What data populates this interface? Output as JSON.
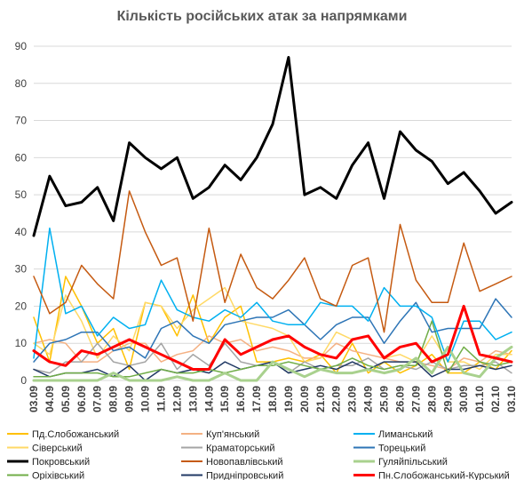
{
  "chart_data": {
    "type": "line",
    "title": "Кількість російських атак за напрямками",
    "xlabel": "",
    "ylabel": "",
    "ylim": [
      0,
      90
    ],
    "yticks": [
      0,
      10,
      20,
      30,
      40,
      50,
      60,
      70,
      80,
      90
    ],
    "grid": "horizontal",
    "legend_position": "bottom",
    "categories": [
      "03.09",
      "04.09",
      "05.09",
      "06.09",
      "07.09",
      "08.09",
      "09.09",
      "10.09",
      "11.09",
      "12.09",
      "13.09",
      "14.09",
      "15.09",
      "16.09",
      "17.09",
      "18.09",
      "19.09",
      "20.09",
      "21.09",
      "22.09",
      "23.09",
      "24.09",
      "25.09",
      "26.09",
      "27.09",
      "28.09",
      "29.09",
      "30.09",
      "01.10",
      "02.10",
      "03.10"
    ],
    "series": [
      {
        "name": "Пд.Слобожанський",
        "color": "#ffc000",
        "width": 1.5,
        "values": [
          17,
          5,
          28,
          20,
          10,
          14,
          3,
          21,
          20,
          12,
          23,
          10,
          17,
          20,
          5,
          5,
          6,
          5,
          7,
          2,
          10,
          2,
          5,
          2,
          4,
          7,
          2,
          2,
          5,
          3,
          8
        ]
      },
      {
        "name": "Куп'янський",
        "color": "#f4b183",
        "width": 1.5,
        "values": [
          10,
          11,
          10,
          5,
          5,
          8,
          10,
          10,
          5,
          7,
          8,
          12,
          10,
          11,
          8,
          9,
          8,
          6,
          6,
          10,
          8,
          7,
          6,
          5,
          5,
          4,
          3,
          6,
          5,
          8,
          7
        ]
      },
      {
        "name": "Лиманський",
        "color": "#00b0f0",
        "width": 1.5,
        "values": [
          6,
          41,
          18,
          20,
          12,
          17,
          14,
          15,
          27,
          19,
          17,
          16,
          19,
          17,
          21,
          16,
          15,
          15,
          21,
          20,
          20,
          16,
          25,
          20,
          20,
          17,
          5,
          16,
          16,
          11,
          13
        ]
      },
      {
        "name": "Сіверський",
        "color": "#ffd966",
        "width": 1.5,
        "values": [
          10,
          7,
          23,
          16,
          6,
          12,
          8,
          21,
          20,
          14,
          19,
          22,
          25,
          16,
          15,
          14,
          12,
          5,
          6,
          13,
          11,
          12,
          6,
          7,
          5,
          12,
          5,
          5,
          3,
          7,
          7
        ]
      },
      {
        "name": "Краматорський",
        "color": "#a5a5a5",
        "width": 1.5,
        "values": [
          3,
          2,
          5,
          5,
          10,
          5,
          4,
          5,
          10,
          3,
          7,
          4,
          10,
          5,
          4,
          5,
          2,
          5,
          3,
          4,
          4,
          6,
          3,
          4,
          3,
          5,
          3,
          4,
          4,
          5,
          2
        ]
      },
      {
        "name": "Торецький",
        "color": "#2e75b6",
        "width": 1.5,
        "values": [
          5,
          10,
          11,
          13,
          13,
          8,
          9,
          6,
          14,
          16,
          12,
          10,
          15,
          16,
          17,
          17,
          19,
          15,
          11,
          15,
          17,
          17,
          10,
          16,
          21,
          13,
          14,
          14,
          14,
          22,
          17
        ]
      },
      {
        "name": "Покровський",
        "color": "#000000",
        "width": 3,
        "values": [
          39,
          55,
          47,
          48,
          52,
          43,
          64,
          60,
          57,
          60,
          49,
          52,
          58,
          54,
          60,
          69,
          87,
          50,
          52,
          49,
          58,
          64,
          49,
          67,
          62,
          59,
          53,
          56,
          51,
          45,
          48
        ]
      },
      {
        "name": "Новопавлівський",
        "color": "#c55a11",
        "width": 1.5,
        "values": [
          28,
          18,
          21,
          31,
          26,
          22,
          51,
          40,
          31,
          33,
          16,
          41,
          21,
          34,
          25,
          22,
          27,
          33,
          22,
          20,
          31,
          33,
          13,
          42,
          27,
          21,
          21,
          37,
          24,
          26,
          28
        ]
      },
      {
        "name": "Гуляйпільський",
        "color": "#a9d18e",
        "width": 3,
        "values": [
          0,
          0,
          0,
          0,
          0,
          2,
          0,
          0,
          0,
          1,
          0,
          0,
          2,
          0,
          0,
          5,
          3,
          1,
          3,
          2,
          2,
          3,
          2,
          3,
          6,
          2,
          9,
          2,
          1,
          6,
          9
        ]
      },
      {
        "name": "Оріхівський",
        "color": "#70ad47",
        "width": 1.5,
        "values": [
          1,
          1,
          2,
          2,
          2,
          1,
          1,
          2,
          3,
          2,
          2,
          3,
          2,
          3,
          4,
          4,
          5,
          4,
          3,
          4,
          6,
          4,
          3,
          4,
          4,
          16,
          2,
          9,
          5,
          4,
          5
        ]
      },
      {
        "name": "Придніпровський",
        "color": "#203864",
        "width": 1.5,
        "values": [
          3,
          1,
          2,
          2,
          3,
          1,
          4,
          0,
          3,
          2,
          3,
          2,
          5,
          3,
          4,
          5,
          2,
          3,
          4,
          3,
          5,
          3,
          5,
          5,
          5,
          1,
          3,
          3,
          4,
          3,
          4
        ]
      },
      {
        "name": "Пн.Слобожанський-Курський",
        "color": "#ff0000",
        "width": 3,
        "values": [
          8,
          5,
          4,
          8,
          7,
          9,
          11,
          9,
          7,
          5,
          3,
          3,
          11,
          7,
          9,
          11,
          12,
          9,
          7,
          6,
          11,
          12,
          6,
          9,
          10,
          5,
          7,
          20,
          7,
          6,
          5
        ]
      }
    ]
  }
}
